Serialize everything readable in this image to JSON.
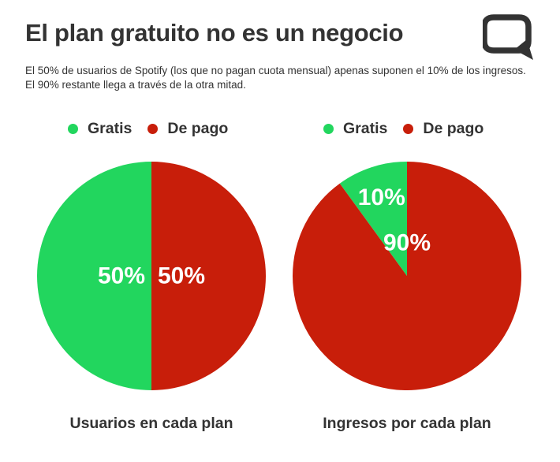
{
  "header": {
    "title": "El plan gratuito no es un negocio",
    "subtitle": "El 50% de usuarios de Spotify (los que no pagan cuota mensual) apenas suponen el 10% de los ingresos. El 90% restante llega a través de la otra mitad."
  },
  "logo": {
    "icon": "speech-bubble-icon",
    "color": "#333333"
  },
  "colors": {
    "gratis": "#22d65e",
    "de_pago": "#c81e0a"
  },
  "chart_data": [
    {
      "type": "pie",
      "title": "Usuarios en cada plan",
      "legend": [
        "Gratis",
        "De pago"
      ],
      "legend_position": "top",
      "slices": [
        {
          "label": "Gratis",
          "value": 50,
          "display": "50%",
          "color": "#22d65e"
        },
        {
          "label": "De pago",
          "value": 50,
          "display": "50%",
          "color": "#c81e0a"
        }
      ]
    },
    {
      "type": "pie",
      "title": "Ingresos por cada plan",
      "legend": [
        "Gratis",
        "De pago"
      ],
      "legend_position": "top",
      "slices": [
        {
          "label": "Gratis",
          "value": 10,
          "display": "10%",
          "color": "#22d65e"
        },
        {
          "label": "De pago",
          "value": 90,
          "display": "90%",
          "color": "#c81e0a"
        }
      ]
    }
  ]
}
